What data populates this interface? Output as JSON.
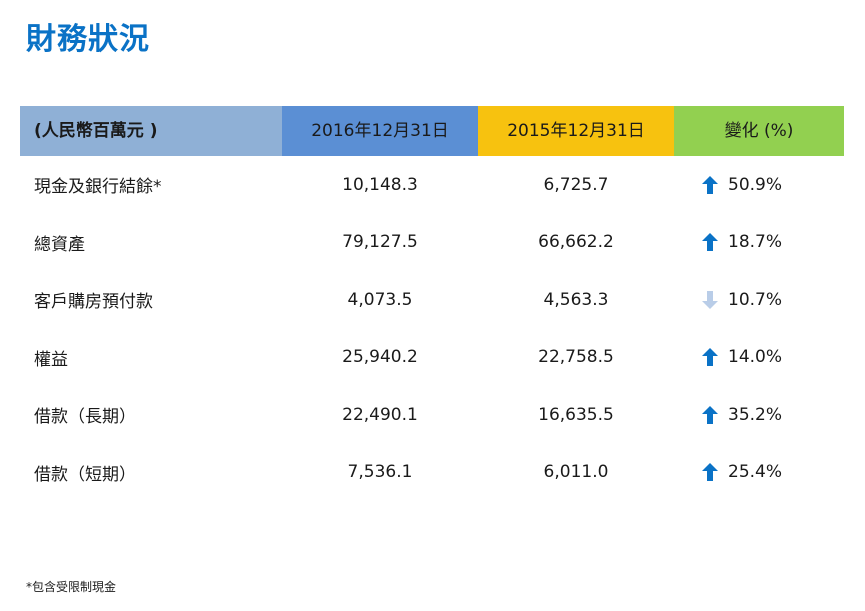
{
  "title": "財務狀況",
  "table": {
    "headers": [
      "(人民幣百萬元 )",
      "2016年12月31日",
      "2015年12月31日",
      "變化 (%)"
    ],
    "rows": [
      {
        "label": "現金及銀行結餘*",
        "v2016": "10,148.3",
        "v2015": "6,725.7",
        "direction": "up",
        "change": "50.9%"
      },
      {
        "label": "總資產",
        "v2016": "79,127.5",
        "v2015": "66,662.2",
        "direction": "up",
        "change": "18.7%"
      },
      {
        "label": "客戶購房預付款",
        "v2016": "4,073.5",
        "v2015": "4,563.3",
        "direction": "down",
        "change": "10.7%"
      },
      {
        "label": "權益",
        "v2016": "25,940.2",
        "v2015": "22,758.5",
        "direction": "up",
        "change": "14.0%"
      },
      {
        "label": "借款（長期）",
        "v2016": "22,490.1",
        "v2015": "16,635.5",
        "direction": "up",
        "change": "35.2%"
      },
      {
        "label": "借款（短期）",
        "v2016": "7,536.1",
        "v2015": "6,011.0",
        "direction": "up",
        "change": "25.4%"
      }
    ]
  },
  "colors": {
    "title": "#0a72c6",
    "arrow_up": "#0a72c6",
    "arrow_down": "#b9cde8"
  },
  "icons": {
    "up": "arrow-up-icon",
    "down": "arrow-down-icon"
  },
  "footnote": "*包含受限制現金"
}
